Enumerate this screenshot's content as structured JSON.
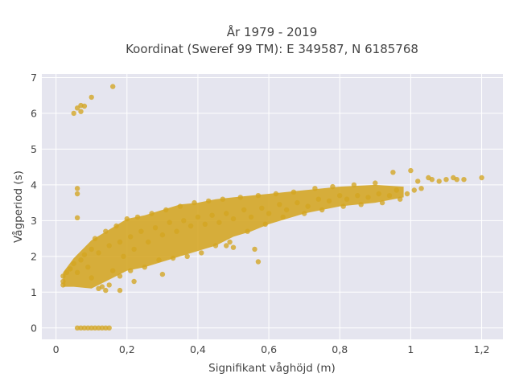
{
  "chart_data": {
    "type": "scatter",
    "title": [
      "År 1979 - 2019",
      "Koordinat (Sweref 99 TM): E 349587, N 6185768"
    ],
    "xlabel": "Signifikant våghöjd (m)",
    "ylabel": "Vågperiod (s)",
    "xlim": [
      -0.04,
      1.26
    ],
    "ylim": [
      -0.32,
      7.1
    ],
    "x_ticks": [
      0,
      0.2,
      0.4,
      0.6,
      0.8,
      1.0,
      1.2
    ],
    "x_tick_labels": [
      "0",
      "0,2",
      "0,4",
      "0,6",
      "0,8",
      "1",
      "1,2"
    ],
    "y_ticks": [
      0,
      1,
      2,
      3,
      4,
      5,
      6,
      7
    ],
    "y_tick_labels": [
      "0",
      "1",
      "2",
      "3",
      "4",
      "5",
      "6",
      "7"
    ],
    "grid": true,
    "marker_color": "#d4a521",
    "background_color": "#e5e5ef",
    "series": [
      {
        "points": [
          [
            0.07,
            0.0
          ],
          [
            0.08,
            0.0
          ],
          [
            0.09,
            0.0
          ],
          [
            0.1,
            0.0
          ],
          [
            0.11,
            0.0
          ],
          [
            0.12,
            0.0
          ],
          [
            0.13,
            0.0
          ],
          [
            0.14,
            0.0
          ],
          [
            0.15,
            0.0
          ],
          [
            0.06,
            0.0
          ],
          [
            0.05,
            6.0
          ],
          [
            0.06,
            6.15
          ],
          [
            0.07,
            6.05
          ],
          [
            0.08,
            6.2
          ],
          [
            0.1,
            6.45
          ],
          [
            0.16,
            6.75
          ],
          [
            0.07,
            6.22
          ],
          [
            0.06,
            3.9
          ],
          [
            0.06,
            3.75
          ],
          [
            0.06,
            3.08
          ],
          [
            0.02,
            1.3
          ],
          [
            0.02,
            1.45
          ],
          [
            0.03,
            1.55
          ],
          [
            0.02,
            1.2
          ],
          [
            0.04,
            1.65
          ],
          [
            0.05,
            1.8
          ],
          [
            0.06,
            1.55
          ],
          [
            0.07,
            1.9
          ],
          [
            0.08,
            2.05
          ],
          [
            0.09,
            1.7
          ],
          [
            0.1,
            2.2
          ],
          [
            0.1,
            1.4
          ],
          [
            0.11,
            2.5
          ],
          [
            0.12,
            2.1
          ],
          [
            0.12,
            1.1
          ],
          [
            0.13,
            1.15
          ],
          [
            0.14,
            2.7
          ],
          [
            0.15,
            2.3
          ],
          [
            0.15,
            1.2
          ],
          [
            0.16,
            1.6
          ],
          [
            0.17,
            2.85
          ],
          [
            0.18,
            2.4
          ],
          [
            0.18,
            1.45
          ],
          [
            0.19,
            2.0
          ],
          [
            0.2,
            3.05
          ],
          [
            0.21,
            2.55
          ],
          [
            0.21,
            1.6
          ],
          [
            0.22,
            2.2
          ],
          [
            0.23,
            3.1
          ],
          [
            0.24,
            2.7
          ],
          [
            0.25,
            1.7
          ],
          [
            0.26,
            2.4
          ],
          [
            0.27,
            3.2
          ],
          [
            0.28,
            2.8
          ],
          [
            0.29,
            1.9
          ],
          [
            0.3,
            2.6
          ],
          [
            0.31,
            3.3
          ],
          [
            0.32,
            2.95
          ],
          [
            0.33,
            1.95
          ],
          [
            0.34,
            2.7
          ],
          [
            0.35,
            3.4
          ],
          [
            0.36,
            3.0
          ],
          [
            0.37,
            2.0
          ],
          [
            0.38,
            2.85
          ],
          [
            0.39,
            3.5
          ],
          [
            0.4,
            3.1
          ],
          [
            0.41,
            2.1
          ],
          [
            0.42,
            2.9
          ],
          [
            0.43,
            3.55
          ],
          [
            0.44,
            3.15
          ],
          [
            0.45,
            2.3
          ],
          [
            0.46,
            2.95
          ],
          [
            0.47,
            3.6
          ],
          [
            0.48,
            3.2
          ],
          [
            0.49,
            2.4
          ],
          [
            0.5,
            3.05
          ],
          [
            0.52,
            3.65
          ],
          [
            0.53,
            3.3
          ],
          [
            0.54,
            2.7
          ],
          [
            0.55,
            3.1
          ],
          [
            0.57,
            3.7
          ],
          [
            0.58,
            3.35
          ],
          [
            0.59,
            2.9
          ],
          [
            0.6,
            3.2
          ],
          [
            0.62,
            3.75
          ],
          [
            0.63,
            3.45
          ],
          [
            0.64,
            3.1
          ],
          [
            0.65,
            3.3
          ],
          [
            0.67,
            3.8
          ],
          [
            0.68,
            3.5
          ],
          [
            0.7,
            3.2
          ],
          [
            0.71,
            3.4
          ],
          [
            0.73,
            3.9
          ],
          [
            0.74,
            3.6
          ],
          [
            0.75,
            3.3
          ],
          [
            0.77,
            3.55
          ],
          [
            0.78,
            3.95
          ],
          [
            0.8,
            3.7
          ],
          [
            0.81,
            3.4
          ],
          [
            0.82,
            3.6
          ],
          [
            0.84,
            4.0
          ],
          [
            0.85,
            3.7
          ],
          [
            0.86,
            3.45
          ],
          [
            0.88,
            3.65
          ],
          [
            0.9,
            4.05
          ],
          [
            0.91,
            3.75
          ],
          [
            0.92,
            3.5
          ],
          [
            0.94,
            3.7
          ],
          [
            0.95,
            4.35
          ],
          [
            0.96,
            3.85
          ],
          [
            0.97,
            3.6
          ],
          [
            0.99,
            3.75
          ],
          [
            1.0,
            4.4
          ],
          [
            1.01,
            3.85
          ],
          [
            1.02,
            4.1
          ],
          [
            1.03,
            3.9
          ],
          [
            1.05,
            4.2
          ],
          [
            1.06,
            4.15
          ],
          [
            1.08,
            4.1
          ],
          [
            1.1,
            4.15
          ],
          [
            1.12,
            4.2
          ],
          [
            1.13,
            4.15
          ],
          [
            1.2,
            4.2
          ],
          [
            1.15,
            4.15
          ],
          [
            0.56,
            2.2
          ],
          [
            0.57,
            1.85
          ],
          [
            0.48,
            2.3
          ],
          [
            0.5,
            2.25
          ],
          [
            0.3,
            1.5
          ],
          [
            0.22,
            1.3
          ],
          [
            0.18,
            1.05
          ],
          [
            0.14,
            1.05
          ]
        ]
      }
    ]
  }
}
